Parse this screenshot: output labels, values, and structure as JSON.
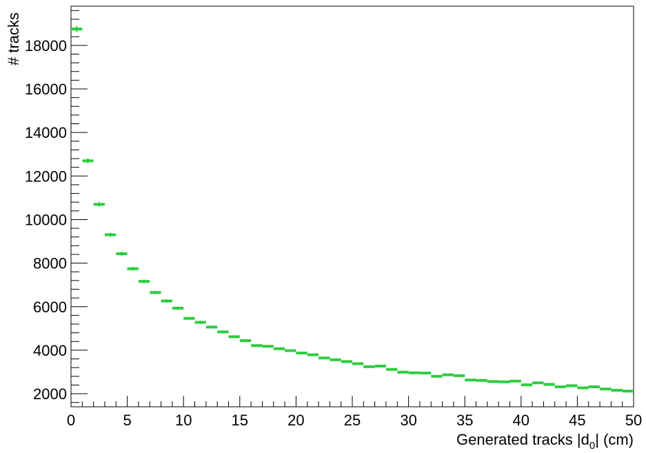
{
  "chart_data": {
    "type": "scatter",
    "title": "",
    "xlabel": "Generated tracks |d0| (cm)",
    "ylabel": "# tracks",
    "xlim": [
      0,
      50
    ],
    "ylim": [
      1400,
      19800
    ],
    "grid": false,
    "legend": "none",
    "x_ticks": [
      "0",
      "5",
      "10",
      "15",
      "20",
      "25",
      "30",
      "35",
      "40",
      "45",
      "50"
    ],
    "y_ticks": [
      "2000",
      "4000",
      "6000",
      "8000",
      "10000",
      "12000",
      "14000",
      "16000",
      "18000"
    ],
    "bin_width": 1,
    "series": [
      {
        "color": "#2ecc40",
        "x": [
          0.5,
          1.5,
          2.5,
          3.5,
          4.5,
          5.5,
          6.5,
          7.5,
          8.5,
          9.5,
          10.5,
          11.5,
          12.5,
          13.5,
          14.5,
          15.5,
          16.5,
          17.5,
          18.5,
          19.5,
          20.5,
          21.5,
          22.5,
          23.5,
          24.5,
          25.5,
          26.5,
          27.5,
          28.5,
          29.5,
          30.5,
          31.5,
          32.5,
          33.5,
          34.5,
          35.5,
          36.5,
          37.5,
          38.5,
          39.5,
          40.5,
          41.5,
          42.5,
          43.5,
          44.5,
          45.5,
          46.5,
          47.5,
          48.5,
          49.5
        ],
        "values": [
          18750,
          12700,
          10700,
          9300,
          8430,
          7740,
          7160,
          6650,
          6260,
          5930,
          5460,
          5280,
          5060,
          4840,
          4620,
          4440,
          4210,
          4180,
          4070,
          3980,
          3870,
          3790,
          3640,
          3560,
          3480,
          3380,
          3240,
          3270,
          3120,
          2990,
          2960,
          2950,
          2800,
          2870,
          2830,
          2630,
          2610,
          2560,
          2550,
          2580,
          2410,
          2500,
          2430,
          2320,
          2370,
          2270,
          2320,
          2220,
          2160,
          2120
        ],
        "errors": [
          137,
          113,
          103,
          96,
          92,
          88,
          85,
          82,
          79,
          77,
          74,
          73,
          71,
          70,
          68,
          67,
          65,
          65,
          64,
          63,
          62,
          62,
          60,
          60,
          59,
          58,
          57,
          57,
          56,
          55,
          54,
          54,
          53,
          54,
          53,
          51,
          51,
          51,
          50,
          51,
          49,
          50,
          49,
          48,
          49,
          48,
          48,
          47,
          46,
          46
        ]
      }
    ]
  }
}
